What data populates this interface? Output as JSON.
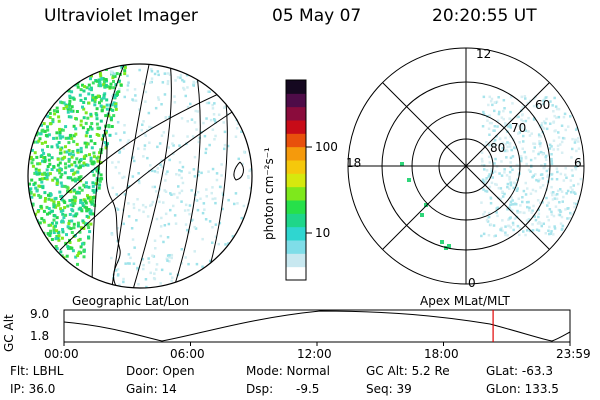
{
  "header": {
    "instrument": "Ultraviolet Imager",
    "date": "05 May 07",
    "time": "20:20:55 UT"
  },
  "colorbar": {
    "unit_label": "photon cm⁻²s⁻¹",
    "ticks": [
      "100",
      "10"
    ],
    "colors": [
      "#ffffff",
      "#c8e8f0",
      "#7fdde8",
      "#2fd6d0",
      "#1fd68a",
      "#27e04a",
      "#7ee81c",
      "#d6e80e",
      "#f5c80c",
      "#f59a0c",
      "#e8500c",
      "#c80c18",
      "#8a0c3c",
      "#4e0c48",
      "#150820"
    ]
  },
  "globe_panel": {
    "label": "Geographic Lat/Lon"
  },
  "polar_panel": {
    "label": "Apex MLat/MLT",
    "mlt_labels": {
      "top": "12",
      "left": "18",
      "right": "6",
      "bottom": "0"
    },
    "lat_labels": [
      "60",
      "70",
      "80"
    ]
  },
  "altitude_plot": {
    "axis_label": "GC Alt",
    "y_ticks": [
      "9.0",
      "1.8"
    ],
    "x_ticks": [
      "00:00",
      "06:00",
      "12:00",
      "18:00",
      "23:59"
    ],
    "current_time_fraction": 0.848,
    "marker_color": "#e00000"
  },
  "info": {
    "filter": "Flt: LBHL",
    "ip": "IP: 36.0",
    "door": "Door: Open",
    "gain": "Gain: 14",
    "mode": "Mode: Normal",
    "dsp_label": "Dsp:",
    "dsp_value": "-9.5",
    "gc_alt": "GC Alt: 5.2 Re",
    "seq": "Seq: 39",
    "glat": "GLat: -63.3",
    "glon": "GLon: 133.5"
  }
}
